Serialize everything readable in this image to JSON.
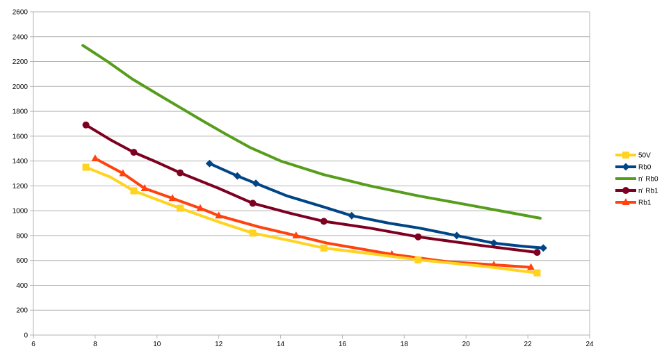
{
  "chart_data": {
    "type": "line",
    "title": "",
    "xlabel": "",
    "ylabel": "",
    "xlim": [
      6,
      24
    ],
    "ylim": [
      0,
      2600
    ],
    "x_ticks": [
      6,
      8,
      10,
      12,
      14,
      16,
      18,
      20,
      22,
      24
    ],
    "y_ticks": [
      0,
      200,
      400,
      600,
      800,
      1000,
      1200,
      1400,
      1600,
      1800,
      2000,
      2200,
      2400,
      2600
    ],
    "grid": "horizontal",
    "legend_position": "right",
    "series": [
      {
        "name": "50V",
        "color": "#ffd320",
        "marker": "square",
        "points": [
          [
            7.7,
            1350
          ],
          [
            8.5,
            1270
          ],
          [
            9.25,
            1160
          ],
          [
            10,
            1090
          ],
          [
            10.75,
            1020
          ],
          [
            12,
            910
          ],
          [
            13.1,
            820
          ],
          [
            14.3,
            760
          ],
          [
            15.4,
            700
          ],
          [
            16.9,
            655
          ],
          [
            18.45,
            605
          ],
          [
            20.5,
            555
          ],
          [
            22.3,
            500
          ]
        ],
        "markers": [
          [
            7.7,
            1350
          ],
          [
            9.25,
            1160
          ],
          [
            10.75,
            1020
          ],
          [
            13.1,
            820
          ],
          [
            15.4,
            700
          ],
          [
            18.45,
            605
          ],
          [
            22.3,
            500
          ]
        ]
      },
      {
        "name": "Rb0",
        "color": "#004586",
        "marker": "diamond",
        "points": [
          [
            11.7,
            1380
          ],
          [
            12.6,
            1280
          ],
          [
            13.2,
            1220
          ],
          [
            14.2,
            1120
          ],
          [
            15.4,
            1030
          ],
          [
            16.3,
            960
          ],
          [
            17.5,
            900
          ],
          [
            18.5,
            860
          ],
          [
            19.7,
            800
          ],
          [
            20.9,
            740
          ],
          [
            21.8,
            715
          ],
          [
            22.5,
            700
          ]
        ],
        "markers": [
          [
            11.7,
            1380
          ],
          [
            12.6,
            1280
          ],
          [
            13.2,
            1220
          ],
          [
            16.3,
            960
          ],
          [
            19.7,
            800
          ],
          [
            20.9,
            740
          ],
          [
            22.5,
            700
          ]
        ]
      },
      {
        "name": "n' Rb0",
        "color": "#579d1c",
        "marker": "none",
        "points": [
          [
            7.6,
            2330
          ],
          [
            8.4,
            2200
          ],
          [
            9.2,
            2060
          ],
          [
            10,
            1940
          ],
          [
            10.75,
            1830
          ],
          [
            11.5,
            1720
          ],
          [
            12.2,
            1620
          ],
          [
            13,
            1510
          ],
          [
            14,
            1400
          ],
          [
            15.4,
            1290
          ],
          [
            16.9,
            1200
          ],
          [
            18.45,
            1120
          ],
          [
            20,
            1050
          ],
          [
            21.3,
            990
          ],
          [
            22.4,
            940
          ]
        ],
        "markers": []
      },
      {
        "name": "n' Rb1",
        "color": "#7e0021",
        "marker": "circle",
        "points": [
          [
            7.7,
            1690
          ],
          [
            8.5,
            1570
          ],
          [
            9.25,
            1470
          ],
          [
            10,
            1390
          ],
          [
            10.75,
            1305
          ],
          [
            12,
            1180
          ],
          [
            13.1,
            1060
          ],
          [
            14.3,
            980
          ],
          [
            15.4,
            915
          ],
          [
            16.9,
            860
          ],
          [
            18.45,
            790
          ],
          [
            20.5,
            720
          ],
          [
            22.3,
            665
          ]
        ],
        "markers": [
          [
            7.7,
            1690
          ],
          [
            9.25,
            1470
          ],
          [
            10.75,
            1305
          ],
          [
            13.1,
            1060
          ],
          [
            15.4,
            915
          ],
          [
            18.45,
            790
          ],
          [
            22.3,
            665
          ]
        ]
      },
      {
        "name": "Rb1",
        "color": "#ff420e",
        "marker": "triangle",
        "points": [
          [
            8,
            1420
          ],
          [
            8.9,
            1300
          ],
          [
            9.6,
            1180
          ],
          [
            10.5,
            1100
          ],
          [
            11.4,
            1020
          ],
          [
            12,
            960
          ],
          [
            13.3,
            870
          ],
          [
            14.5,
            800
          ],
          [
            15.5,
            740
          ],
          [
            17.6,
            650
          ],
          [
            19.4,
            590
          ],
          [
            20.9,
            565
          ],
          [
            22.1,
            545
          ]
        ],
        "markers": [
          [
            8,
            1420
          ],
          [
            8.9,
            1300
          ],
          [
            9.6,
            1180
          ],
          [
            10.5,
            1100
          ],
          [
            11.4,
            1020
          ],
          [
            12,
            960
          ],
          [
            14.5,
            800
          ],
          [
            17.6,
            650
          ],
          [
            20.9,
            565
          ],
          [
            22.1,
            545
          ]
        ]
      }
    ]
  }
}
